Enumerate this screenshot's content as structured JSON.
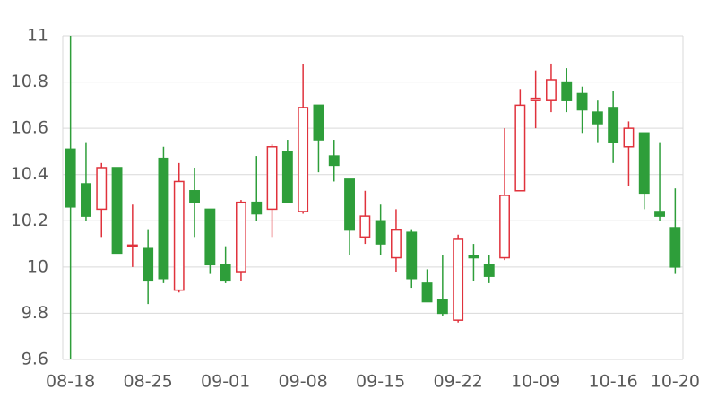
{
  "chart_data": {
    "type": "candlestick",
    "categories": [
      "08-18",
      null,
      null,
      null,
      null,
      "08-25",
      null,
      null,
      null,
      null,
      "09-01",
      null,
      null,
      null,
      null,
      "09-08",
      null,
      null,
      null,
      null,
      "09-15",
      null,
      null,
      null,
      null,
      "09-22",
      null,
      null,
      null,
      null,
      "10-09",
      null,
      null,
      null,
      null,
      "10-16",
      null,
      null,
      null,
      "10-20"
    ],
    "open": [
      10.51,
      10.36,
      10.25,
      10.43,
      10.09,
      10.08,
      10.47,
      9.9,
      10.33,
      10.25,
      10.01,
      9.98,
      10.28,
      10.25,
      10.5,
      10.24,
      10.7,
      10.48,
      10.38,
      10.13,
      10.2,
      10.04,
      10.15,
      9.93,
      9.86,
      9.77,
      10.05,
      10.01,
      10.04,
      10.33,
      10.72,
      10.72,
      10.8,
      10.75,
      10.67,
      10.69,
      10.52,
      10.58,
      10.24,
      10.17
    ],
    "high": [
      11.0,
      10.54,
      10.45,
      10.43,
      10.27,
      10.16,
      10.52,
      10.45,
      10.43,
      10.25,
      10.09,
      10.29,
      10.48,
      10.53,
      10.55,
      10.88,
      10.7,
      10.55,
      10.38,
      10.33,
      10.27,
      10.25,
      10.16,
      9.99,
      10.05,
      10.14,
      10.1,
      10.05,
      10.6,
      10.77,
      10.85,
      10.88,
      10.86,
      10.78,
      10.72,
      10.76,
      10.63,
      10.58,
      10.54,
      10.34
    ],
    "low": [
      9.6,
      10.2,
      10.13,
      10.06,
      10.0,
      9.84,
      9.93,
      9.89,
      10.13,
      9.97,
      9.93,
      9.94,
      10.2,
      10.13,
      10.28,
      10.23,
      10.41,
      10.37,
      10.05,
      10.1,
      10.05,
      9.98,
      9.91,
      9.85,
      9.79,
      9.76,
      9.94,
      9.93,
      10.03,
      10.33,
      10.6,
      10.67,
      10.67,
      10.58,
      10.54,
      10.45,
      10.35,
      10.25,
      10.2,
      9.97
    ],
    "close": [
      10.26,
      10.22,
      10.43,
      10.06,
      10.095,
      9.94,
      9.95,
      10.37,
      10.28,
      10.01,
      9.94,
      10.28,
      10.23,
      10.52,
      10.28,
      10.69,
      10.55,
      10.44,
      10.16,
      10.22,
      10.1,
      10.16,
      9.95,
      9.85,
      9.8,
      10.12,
      10.04,
      9.96,
      10.31,
      10.7,
      10.73,
      10.81,
      10.72,
      10.68,
      10.62,
      10.54,
      10.6,
      10.32,
      10.22,
      10.0
    ],
    "up_color": "#e0323c",
    "down_color": "#2e9e3a",
    "ylim": [
      9.6,
      11
    ],
    "yticks": [
      9.6,
      9.8,
      10,
      10.2,
      10.4,
      10.6,
      10.8,
      11
    ],
    "grid": true
  }
}
